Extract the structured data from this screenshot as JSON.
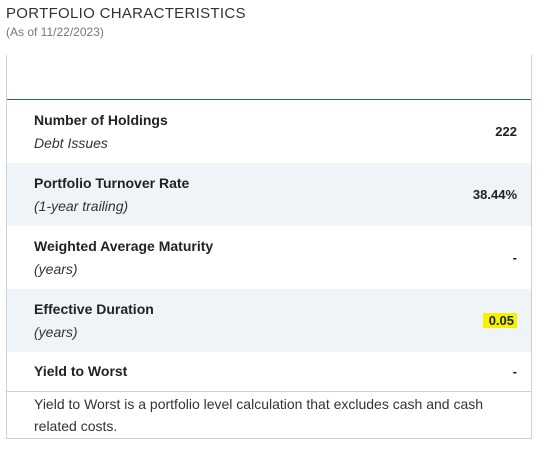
{
  "header": {
    "title": "PORTFOLIO CHARACTERISTICS",
    "as_of": "(As of 11/22/2023)"
  },
  "rows": [
    {
      "label": "Number of Holdings",
      "sub": "Debt Issues",
      "value": "222"
    },
    {
      "label": "Portfolio Turnover Rate",
      "sub": "(1-year trailing)",
      "value": "38.44%"
    },
    {
      "label": "Weighted Average Maturity",
      "sub": "(years)",
      "value": "-"
    },
    {
      "label": "Effective Duration",
      "sub": "(years)",
      "value": "0.05"
    },
    {
      "label": "Yield to Worst",
      "value": "-"
    }
  ],
  "footnote": "Yield to Worst is a portfolio level calculation that excludes cash and cash related costs.",
  "colors": {
    "header_rule": "#2b5f7f",
    "shaded_row": "#eef4f8",
    "highlight": "#f6f200"
  }
}
